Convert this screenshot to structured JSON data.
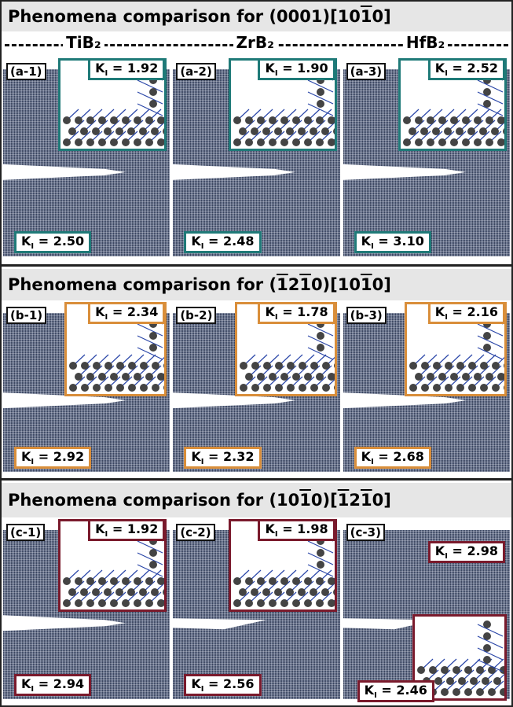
{
  "k_symbol": "K",
  "k_subscript": "I",
  "k_equals": "=",
  "materials": [
    "TiB₂",
    "ZrB₂",
    "HfB₂"
  ],
  "sections": [
    {
      "title": [
        {
          "t": "Phenomena comparison for (0001)[10"
        },
        {
          "t": "1",
          "bar": true
        },
        {
          "t": "0]"
        }
      ],
      "color": "#1f7a78",
      "panels": [
        {
          "label": "(a-1)",
          "k_top": "1.92",
          "k_bottom": "2.50"
        },
        {
          "label": "(a-2)",
          "k_top": "1.90",
          "k_bottom": "2.48"
        },
        {
          "label": "(a-3)",
          "k_top": "2.52",
          "k_bottom": "3.10"
        }
      ]
    },
    {
      "title": [
        {
          "t": "Phenomena comparison for ("
        },
        {
          "t": "1",
          "bar": true
        },
        {
          "t": "2"
        },
        {
          "t": "1",
          "bar": true
        },
        {
          "t": "0)[10"
        },
        {
          "t": "1",
          "bar": true
        },
        {
          "t": "0]"
        }
      ],
      "color": "#d98e3a",
      "panels": [
        {
          "label": "(b-1)",
          "k_top": "2.34",
          "k_bottom": "2.92"
        },
        {
          "label": "(b-2)",
          "k_top": "1.78",
          "k_bottom": "2.32"
        },
        {
          "label": "(b-3)",
          "k_top": "2.16",
          "k_bottom": "2.68"
        }
      ]
    },
    {
      "title": [
        {
          "t": "Phenomena comparison for (10"
        },
        {
          "t": "1",
          "bar": true
        },
        {
          "t": "0)["
        },
        {
          "t": "1",
          "bar": true
        },
        {
          "t": "2"
        },
        {
          "t": "1",
          "bar": true
        },
        {
          "t": "0]"
        }
      ],
      "color": "#7a1a2c",
      "panels": [
        {
          "label": "(c-1)",
          "k_top": "1.92",
          "k_bottom": "2.94"
        },
        {
          "label": "(c-2)",
          "k_top": "1.98",
          "k_bottom": "2.56"
        },
        {
          "label": "(c-3)",
          "k_top": "2.98",
          "k_bottom": "2.46"
        }
      ]
    }
  ]
}
